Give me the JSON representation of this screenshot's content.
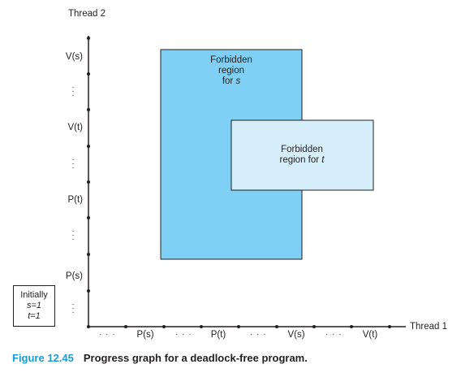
{
  "axes": {
    "y_title": "Thread 2",
    "x_title": "Thread 1",
    "y_labels": [
      "V(s)",
      "V(t)",
      "P(t)",
      "P(s)"
    ],
    "x_labels": [
      "P(s)",
      "P(t)",
      "V(s)",
      "V(t)"
    ]
  },
  "regions": {
    "s": {
      "line1": "Forbidden",
      "line2": "region",
      "line3_prefix": "for ",
      "line3_var": "s",
      "color": "#7fd0f4"
    },
    "t": {
      "line1": "Forbidden",
      "line2_prefix": "region for ",
      "line2_var": "t",
      "color": "#d5eef9"
    }
  },
  "initial": {
    "title": "Initially",
    "s_line": "s=1",
    "t_line": "t=1"
  },
  "caption": {
    "number": "Figure 12.45",
    "text": "Progress graph for a deadlock-free program."
  },
  "colors": {
    "accent": "#1a9ad6",
    "axis": "#231f20",
    "region_border": "#231f20"
  }
}
